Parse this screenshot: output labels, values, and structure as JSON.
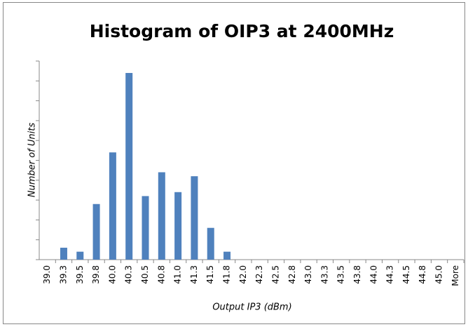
{
  "chart_data": {
    "type": "bar",
    "title": "Histogram of OIP3 at 2400MHz",
    "x_label": "Output IP3 (dBm)",
    "y_label": "Number of Units",
    "categories": [
      "39.0",
      "39.3",
      "39.5",
      "39.8",
      "40.0",
      "40.3",
      "40.5",
      "40.8",
      "41.0",
      "41.3",
      "41.5",
      "41.8",
      "42.0",
      "42.3",
      "42.5",
      "42.8",
      "43.0",
      "43.3",
      "43.5",
      "43.8",
      "44.0",
      "44.3",
      "44.5",
      "44.8",
      "45.0",
      "More"
    ],
    "values": [
      0,
      3,
      2,
      14,
      27,
      47,
      16,
      22,
      17,
      21,
      8,
      2,
      0,
      0,
      0,
      0,
      0,
      0,
      0,
      0,
      0,
      0,
      0,
      0,
      0,
      0
    ],
    "color": "#4f81bd",
    "ylim": [
      0,
      50
    ],
    "yticks": [
      0,
      5,
      10,
      15,
      20,
      25,
      30,
      35,
      40,
      45,
      50
    ],
    "grid": false
  }
}
